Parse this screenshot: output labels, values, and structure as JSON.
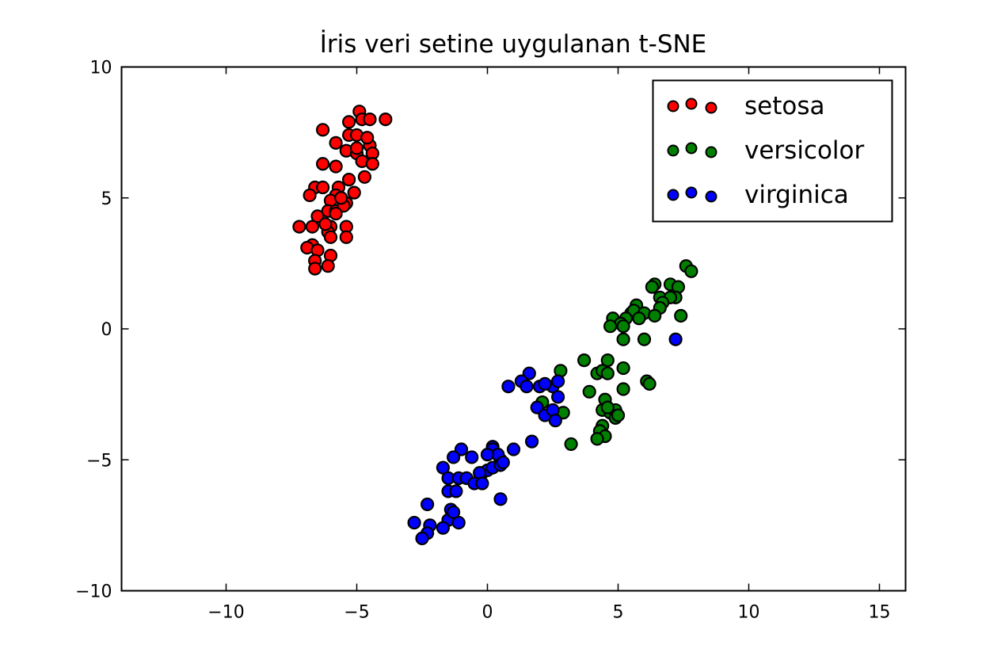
{
  "chart_data": {
    "type": "scatter",
    "title": "İris veri setine uygulanan t-SNE",
    "xlabel": "",
    "ylabel": "",
    "xlim": [
      -14,
      16
    ],
    "ylim": [
      -10,
      10
    ],
    "xticks": [
      -10,
      -5,
      0,
      5,
      10,
      15
    ],
    "yticks": [
      -10,
      -5,
      0,
      5,
      10
    ],
    "xtick_labels": [
      "−10",
      "−5",
      "0",
      "5",
      "10",
      "15"
    ],
    "ytick_labels": [
      "−10",
      "−5",
      "0",
      "5",
      "10"
    ],
    "grid": false,
    "legend_position": "upper right",
    "series": [
      {
        "name": "setosa",
        "color": "#ff0000",
        "points": [
          [
            -4.9,
            8.3
          ],
          [
            -5.3,
            7.9
          ],
          [
            -4.8,
            8.0
          ],
          [
            -4.5,
            8.0
          ],
          [
            -3.9,
            8.0
          ],
          [
            -6.3,
            7.6
          ],
          [
            -5.8,
            7.1
          ],
          [
            -5.3,
            7.4
          ],
          [
            -5.0,
            7.4
          ],
          [
            -4.5,
            7.0
          ],
          [
            -5.4,
            6.8
          ],
          [
            -5.0,
            6.7
          ],
          [
            -4.4,
            6.7
          ],
          [
            -4.8,
            6.4
          ],
          [
            -4.4,
            6.3
          ],
          [
            -6.3,
            6.3
          ],
          [
            -5.8,
            6.2
          ],
          [
            -4.7,
            5.8
          ],
          [
            -5.3,
            5.7
          ],
          [
            -6.6,
            5.4
          ],
          [
            -6.3,
            5.4
          ],
          [
            -5.7,
            5.4
          ],
          [
            -6.8,
            5.1
          ],
          [
            -5.8,
            5.1
          ],
          [
            -6.0,
            4.9
          ],
          [
            -5.4,
            4.8
          ],
          [
            -6.1,
            4.5
          ],
          [
            -5.8,
            4.5
          ],
          [
            -5.5,
            4.7
          ],
          [
            -5.8,
            4.4
          ],
          [
            -6.5,
            4.3
          ],
          [
            -7.2,
            3.9
          ],
          [
            -6.7,
            3.9
          ],
          [
            -6.0,
            3.9
          ],
          [
            -5.4,
            3.9
          ],
          [
            -6.1,
            3.7
          ],
          [
            -6.0,
            3.5
          ],
          [
            -5.4,
            3.5
          ],
          [
            -6.7,
            3.2
          ],
          [
            -6.9,
            3.1
          ],
          [
            -6.5,
            3.0
          ],
          [
            -6.0,
            2.8
          ],
          [
            -6.6,
            2.6
          ],
          [
            -6.1,
            2.4
          ],
          [
            -6.6,
            2.3
          ],
          [
            -5.0,
            6.9
          ],
          [
            -4.6,
            7.3
          ],
          [
            -5.1,
            5.2
          ],
          [
            -6.2,
            4.0
          ],
          [
            -5.6,
            5.0
          ]
        ]
      },
      {
        "name": "versicolor",
        "color": "#007f00",
        "points": [
          [
            7.6,
            2.4
          ],
          [
            7.8,
            2.2
          ],
          [
            6.4,
            1.7
          ],
          [
            7.0,
            1.7
          ],
          [
            7.3,
            1.6
          ],
          [
            7.2,
            1.2
          ],
          [
            6.6,
            1.2
          ],
          [
            7.0,
            1.2
          ],
          [
            6.7,
            1.0
          ],
          [
            5.7,
            0.9
          ],
          [
            6.6,
            0.8
          ],
          [
            5.5,
            0.6
          ],
          [
            5.6,
            0.7
          ],
          [
            6.0,
            0.6
          ],
          [
            5.3,
            0.4
          ],
          [
            7.4,
            0.5
          ],
          [
            6.4,
            0.5
          ],
          [
            4.8,
            0.4
          ],
          [
            5.1,
            0.2
          ],
          [
            5.2,
            0.1
          ],
          [
            4.7,
            0.1
          ],
          [
            6.0,
            -0.4
          ],
          [
            5.2,
            -0.4
          ],
          [
            3.7,
            -1.2
          ],
          [
            4.6,
            -1.2
          ],
          [
            5.2,
            -1.5
          ],
          [
            4.2,
            -1.7
          ],
          [
            4.4,
            -1.6
          ],
          [
            4.6,
            -1.7
          ],
          [
            6.1,
            -2.0
          ],
          [
            2.8,
            -1.6
          ],
          [
            3.9,
            -2.4
          ],
          [
            5.2,
            -2.3
          ],
          [
            4.5,
            -2.7
          ],
          [
            4.4,
            -3.1
          ],
          [
            4.7,
            -3.2
          ],
          [
            4.9,
            -3.1
          ],
          [
            4.9,
            -3.4
          ],
          [
            2.9,
            -3.2
          ],
          [
            4.4,
            -3.7
          ],
          [
            4.3,
            -3.9
          ],
          [
            4.5,
            -4.1
          ],
          [
            4.2,
            -4.2
          ],
          [
            3.2,
            -4.4
          ],
          [
            2.1,
            -2.8
          ],
          [
            6.2,
            -2.1
          ],
          [
            5.8,
            0.4
          ],
          [
            5.0,
            -3.3
          ],
          [
            4.6,
            -3.0
          ],
          [
            6.3,
            1.6
          ]
        ]
      },
      {
        "name": "virginica",
        "color": "#0000ff",
        "points": [
          [
            7.2,
            -0.4
          ],
          [
            1.6,
            -1.7
          ],
          [
            0.8,
            -2.2
          ],
          [
            1.3,
            -2.0
          ],
          [
            1.5,
            -2.2
          ],
          [
            2.0,
            -2.2
          ],
          [
            2.5,
            -2.2
          ],
          [
            2.7,
            -2.0
          ],
          [
            2.7,
            -2.6
          ],
          [
            1.9,
            -3.0
          ],
          [
            2.2,
            -3.3
          ],
          [
            2.5,
            -3.1
          ],
          [
            2.6,
            -3.5
          ],
          [
            1.7,
            -4.3
          ],
          [
            1.0,
            -4.6
          ],
          [
            0.2,
            -4.5
          ],
          [
            0.4,
            -4.8
          ],
          [
            0.5,
            -5.0
          ],
          [
            -1.0,
            -4.6
          ],
          [
            0.2,
            -4.6
          ],
          [
            -1.3,
            -4.9
          ],
          [
            -0.6,
            -4.9
          ],
          [
            0.4,
            -4.8
          ],
          [
            -1.7,
            -5.3
          ],
          [
            -0.2,
            -5.5
          ],
          [
            0.0,
            -5.4
          ],
          [
            0.2,
            -5.3
          ],
          [
            0.5,
            -5.2
          ],
          [
            0.6,
            -5.1
          ],
          [
            -1.5,
            -5.7
          ],
          [
            -1.1,
            -5.7
          ],
          [
            -0.8,
            -5.7
          ],
          [
            -0.3,
            -5.5
          ],
          [
            -1.5,
            -6.2
          ],
          [
            -1.2,
            -6.2
          ],
          [
            -0.5,
            -5.9
          ],
          [
            -0.2,
            -5.9
          ],
          [
            0.5,
            -6.5
          ],
          [
            -2.3,
            -6.7
          ],
          [
            -1.4,
            -6.9
          ],
          [
            -2.8,
            -7.4
          ],
          [
            -1.5,
            -7.3
          ],
          [
            -1.1,
            -7.4
          ],
          [
            -2.2,
            -7.5
          ],
          [
            -1.7,
            -7.6
          ],
          [
            -2.3,
            -7.8
          ],
          [
            -2.5,
            -8.0
          ],
          [
            -1.3,
            -7.0
          ],
          [
            0.0,
            -4.8
          ],
          [
            2.2,
            -2.1
          ]
        ]
      }
    ]
  },
  "legend": {
    "items": [
      {
        "label": "setosa",
        "color": "#ff0000"
      },
      {
        "label": "versicolor",
        "color": "#007f00"
      },
      {
        "label": "virginica",
        "color": "#0000ff"
      }
    ]
  }
}
